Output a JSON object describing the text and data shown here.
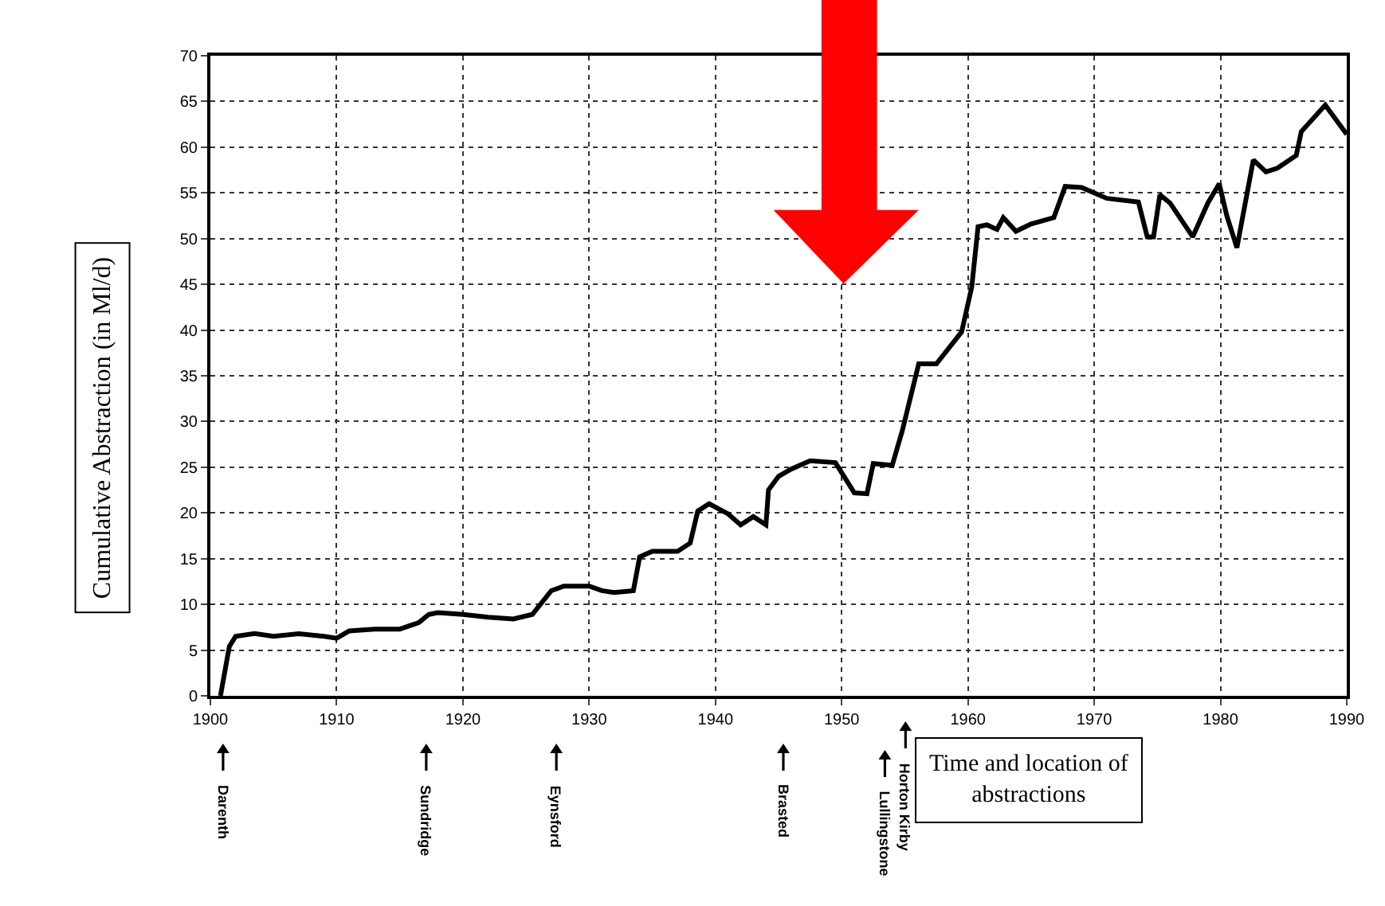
{
  "chart_data": {
    "type": "line",
    "ylabel": "Cumulative Abstraction (in Ml/d)",
    "x": [
      1900.8,
      1901.5,
      1902,
      1903.5,
      1905,
      1907,
      1909,
      1910,
      1911,
      1913,
      1915,
      1916.5,
      1917.3,
      1918,
      1920,
      1922,
      1924,
      1925.5,
      1927,
      1928,
      1930,
      1931,
      1932,
      1933.5,
      1934,
      1935,
      1937,
      1938,
      1938.6,
      1939.5,
      1941,
      1942,
      1943,
      1944,
      1944.2,
      1945,
      1946,
      1947.5,
      1949.5,
      1950.5,
      1951,
      1952,
      1952.5,
      1954,
      1954.8,
      1956.1,
      1957.5,
      1959.5,
      1960.3,
      1960.8,
      1961.5,
      1962.3,
      1962.8,
      1963.8,
      1965,
      1966.8,
      1967.7,
      1969,
      1971,
      1973.5,
      1974.2,
      1974.7,
      1975.2,
      1976,
      1977.8,
      1979,
      1979.9,
      1980.5,
      1981.3,
      1982.6,
      1983.6,
      1984.5,
      1986,
      1986.4,
      1988.3,
      1990
    ],
    "series": [
      {
        "color": "#000000",
        "values": [
          0,
          5.4,
          6.5,
          6.8,
          6.5,
          6.8,
          6.5,
          6.3,
          7.1,
          7.3,
          7.3,
          8.0,
          8.9,
          9.1,
          8.9,
          8.6,
          8.4,
          8.9,
          11.5,
          12.0,
          12.0,
          11.5,
          11.3,
          11.5,
          15.2,
          15.8,
          15.8,
          16.7,
          20.2,
          21.0,
          19.9,
          18.7,
          19.6,
          18.7,
          22.5,
          24.0,
          24.8,
          25.7,
          25.5,
          23.3,
          22.2,
          22.1,
          25.4,
          25.2,
          29.0,
          36.3,
          36.3,
          39.8,
          44.7,
          51.3,
          51.5,
          51.0,
          52.3,
          50.8,
          51.6,
          52.3,
          55.7,
          55.6,
          54.4,
          54.0,
          50.2,
          50.2,
          54.8,
          53.9,
          50.2,
          53.9,
          56.0,
          52.5,
          49.0,
          58.6,
          57.3,
          57.7,
          59.1,
          61.7,
          64.6,
          61.4
        ]
      }
    ],
    "xlim": [
      1900,
      1990
    ],
    "xticks": [
      1900,
      1910,
      1920,
      1930,
      1940,
      1950,
      1960,
      1970,
      1980,
      1990
    ],
    "ylim": [
      0,
      70
    ],
    "yticks": [
      0,
      5,
      10,
      15,
      20,
      25,
      30,
      35,
      40,
      45,
      50,
      55,
      60,
      65,
      70
    ],
    "grid": true,
    "line_style": "solid",
    "marker": "none",
    "annotations": [
      "Darenth",
      "Sundridge",
      "Eynsford",
      "Brasted",
      "Lullingstone",
      "Horton Kirby",
      "Time and location of\nabstractions"
    ]
  }
}
